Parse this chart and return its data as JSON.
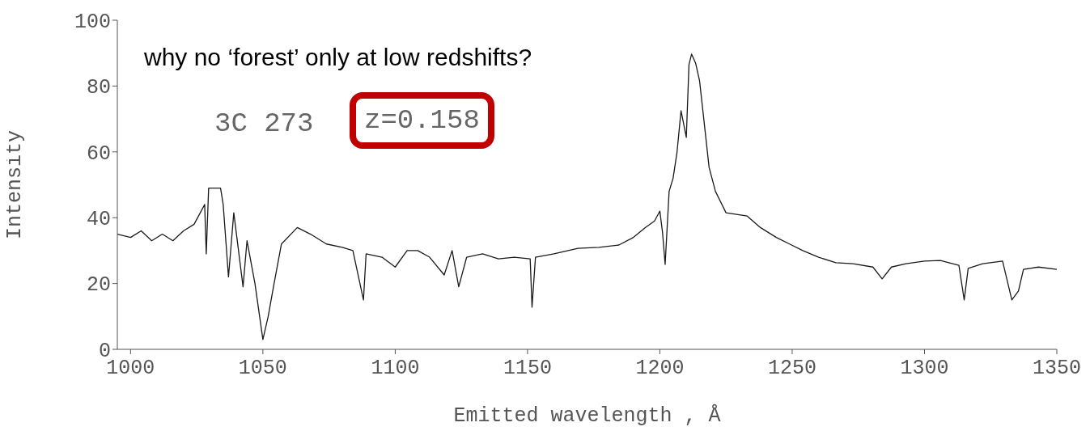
{
  "chart_data": {
    "type": "line",
    "title": "why no ‘forest’ only at low redshifts?",
    "annotations": [
      "3C 273",
      "z=0.158"
    ],
    "xlabel": "Emitted wavelength , Å",
    "ylabel": "Intensity",
    "xlim": [
      995,
      1350
    ],
    "xticks": [
      1000,
      1050,
      1100,
      1150,
      1200,
      1250,
      1300,
      1350
    ],
    "ylim": [
      0,
      100
    ],
    "yticks": [
      0,
      20,
      40,
      60,
      80,
      100
    ],
    "grid": false,
    "legend": false,
    "marker": "none",
    "line_style": "solid",
    "series": [
      {
        "color": "#1a1a1a",
        "x": [
          995,
          1000,
          1004,
          1008,
          1012,
          1016,
          1020,
          1024,
          1028,
          1028.6,
          1029.5,
          1034,
          1035,
          1037,
          1039,
          1042.5,
          1044,
          1047,
          1050,
          1052,
          1054,
          1057,
          1063,
          1068,
          1074,
          1080,
          1084,
          1088,
          1089,
          1095,
          1100,
          1104.5,
          1108.5,
          1113,
          1118.5,
          1121.5,
          1124,
          1127,
          1133,
          1139,
          1145,
          1151,
          1151.7,
          1153,
          1160,
          1169,
          1177,
          1184.5,
          1190,
          1194.5,
          1198,
          1200,
          1201,
          1202,
          1203.5,
          1205,
          1206.5,
          1208,
          1210,
          1211,
          1212,
          1213.5,
          1215,
          1216.6,
          1218.6,
          1221,
          1225,
          1233,
          1238,
          1244,
          1249,
          1254,
          1260,
          1266.5,
          1273,
          1280.5,
          1284,
          1287.5,
          1293,
          1300,
          1306,
          1313,
          1315,
          1316.5,
          1322,
          1329.5,
          1333,
          1335.5,
          1337.4,
          1343,
          1350
        ],
        "values": [
          35,
          34,
          36,
          33,
          35,
          33,
          36,
          38,
          44,
          29,
          49,
          49,
          44,
          22,
          41.5,
          19,
          33,
          20,
          3,
          10,
          19,
          32,
          37,
          35,
          32,
          31,
          30,
          15,
          29,
          28,
          25,
          30,
          30,
          28,
          22.6,
          30,
          19,
          28,
          29,
          27.5,
          28,
          27.5,
          12.8,
          28,
          29,
          30.7,
          31,
          31.7,
          34,
          37,
          39,
          42,
          35.6,
          25.8,
          48,
          52,
          60,
          72.5,
          64.4,
          86.5,
          89.7,
          87,
          81.6,
          70,
          55.3,
          48,
          41.5,
          40.5,
          37,
          34,
          32,
          30,
          28,
          26.3,
          26,
          25,
          21.4,
          25,
          26,
          26.8,
          27,
          25.5,
          15,
          24.6,
          26,
          26.8,
          15,
          17.7,
          24.3,
          25,
          24.3
        ]
      }
    ]
  }
}
